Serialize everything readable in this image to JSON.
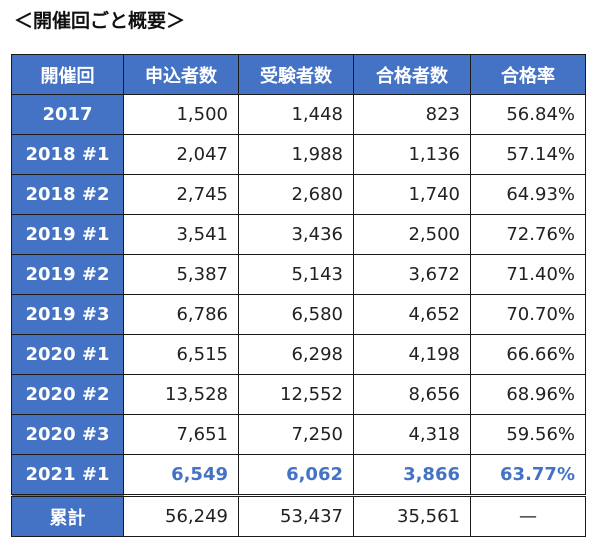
{
  "page": {
    "title": "＜開催回ごと概要＞"
  },
  "table": {
    "headers": [
      "開催回",
      "申込者数",
      "受験者数",
      "合格者数",
      "合格率"
    ],
    "rows": [
      {
        "label": "2017",
        "applicants": "1,500",
        "examinees": "1,448",
        "passers": "823",
        "rate": "56.84%"
      },
      {
        "label": "2018 #1",
        "applicants": "2,047",
        "examinees": "1,988",
        "passers": "1,136",
        "rate": "57.14%"
      },
      {
        "label": "2018 #2",
        "applicants": "2,745",
        "examinees": "2,680",
        "passers": "1,740",
        "rate": "64.93%"
      },
      {
        "label": "2019 #1",
        "applicants": "3,541",
        "examinees": "3,436",
        "passers": "2,500",
        "rate": "72.76%"
      },
      {
        "label": "2019 #2",
        "applicants": "5,387",
        "examinees": "5,143",
        "passers": "3,672",
        "rate": "71.40%"
      },
      {
        "label": "2019 #3",
        "applicants": "6,786",
        "examinees": "6,580",
        "passers": "4,652",
        "rate": "70.70%"
      },
      {
        "label": "2020 #1",
        "applicants": "6,515",
        "examinees": "6,298",
        "passers": "4,198",
        "rate": "66.66%"
      },
      {
        "label": "2020 #2",
        "applicants": "13,528",
        "examinees": "12,552",
        "passers": "8,656",
        "rate": "68.96%"
      },
      {
        "label": "2020 #3",
        "applicants": "7,651",
        "examinees": "7,250",
        "passers": "4,318",
        "rate": "59.56%"
      },
      {
        "label": "2021 #1",
        "applicants": "6,549",
        "examinees": "6,062",
        "passers": "3,866",
        "rate": "63.77%"
      }
    ],
    "total": {
      "label": "累計",
      "applicants": "56,249",
      "examinees": "53,437",
      "passers": "35,561",
      "rate": "—"
    }
  },
  "colors": {
    "header_bg": "#4472c4",
    "header_text": "#ffffff",
    "highlight_text": "#4472c4"
  }
}
